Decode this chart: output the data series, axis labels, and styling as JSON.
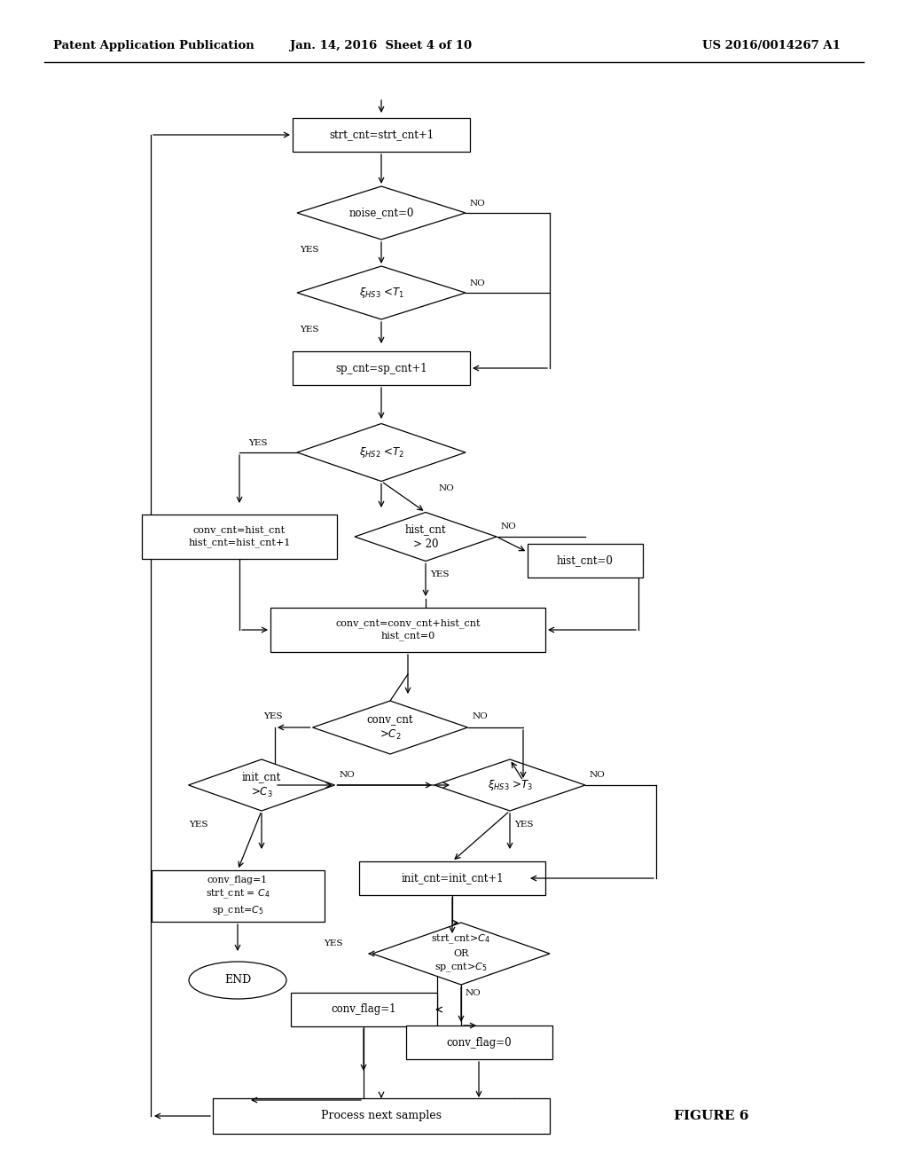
{
  "title_left": "Patent Application Publication",
  "title_center": "Jan. 14, 2016  Sheet 4 of 10",
  "title_right": "US 2016/0014267 A1",
  "figure_label": "FIGURE 6",
  "bg_color": "#ffffff"
}
